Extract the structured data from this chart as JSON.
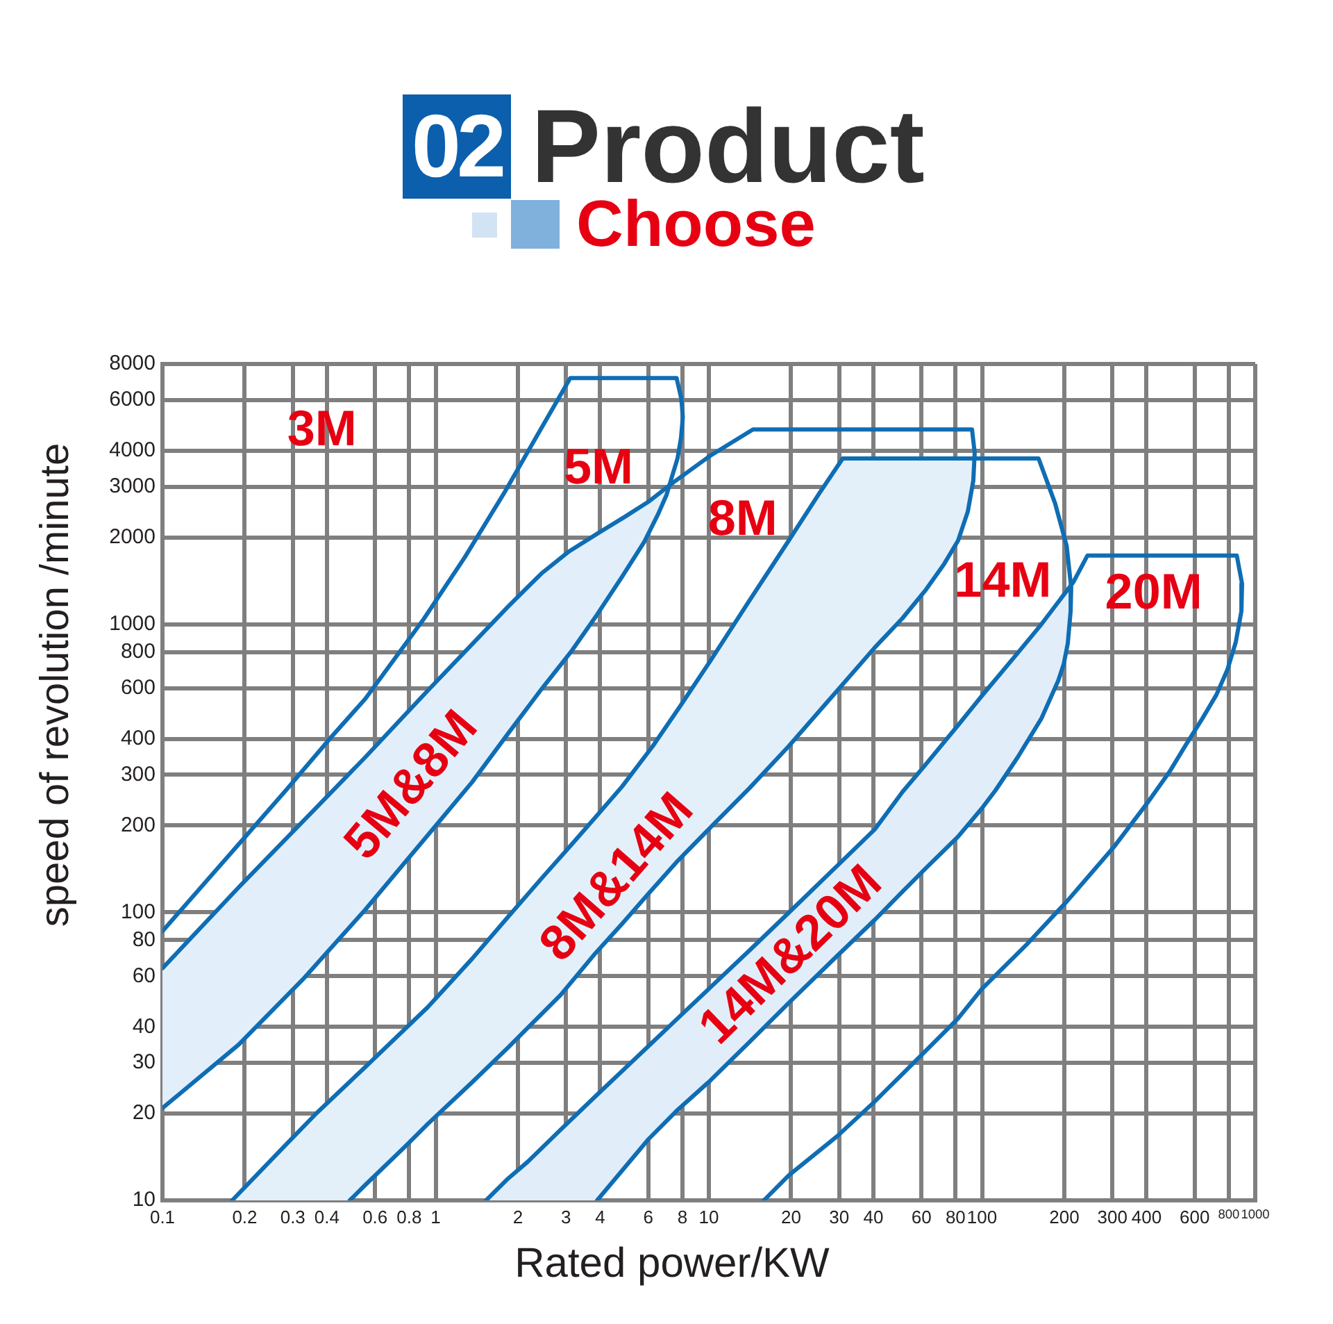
{
  "chart_data": {
    "type": "line",
    "title": "02 Product",
    "subtitle": "Choose",
    "xlabel": "Rated power/KW",
    "ylabel": "speed of revolution /minute",
    "log": "xy",
    "grid": true,
    "xlim": [
      0.1,
      1000
    ],
    "ylim": [
      10,
      8000
    ],
    "xticks": [
      0.1,
      0.2,
      0.3,
      0.4,
      0.6,
      0.8,
      1,
      2,
      3,
      4,
      6,
      8,
      10,
      20,
      30,
      40,
      60,
      80,
      100,
      200,
      300,
      400,
      600,
      800,
      1000
    ],
    "yticks": [
      10,
      20,
      30,
      40,
      60,
      80,
      100,
      200,
      300,
      400,
      600,
      800,
      1000,
      2000,
      3000,
      4000,
      6000,
      8000
    ],
    "annotations": [
      "3M",
      "5M",
      "8M",
      "14M",
      "20M",
      "5M&8M",
      "8M&14M",
      "14M&20M"
    ],
    "series": [
      {
        "type": "area",
        "color": "#e2effa",
        "x": [
          0.1,
          0.19,
          0.326,
          0.552,
          0.935,
          1.36,
          1.84,
          2.44,
          3.16,
          3.9,
          4.81,
          5.8,
          6.52,
          7.0,
          7.16,
          6.01,
          4.93,
          3.9,
          3.08,
          2.44,
          1.84,
          0.935,
          0.552,
          0.407,
          0.19,
          0.1
        ],
        "values": [
          20.9,
          34.7,
          58.4,
          102,
          185,
          283,
          417,
          595,
          812,
          1080,
          1460,
          1930,
          2410,
          2810,
          3030,
          2660,
          2360,
          2060,
          1790,
          1500,
          1150,
          588,
          345,
          256,
          122,
          63.9
        ]
      },
      {
        "type": "area",
        "color": "#e3f0fa",
        "x": [
          0.485,
          0.552,
          0.775,
          0.935,
          1.36,
          1.84,
          2.44,
          2.87,
          3.85,
          4.81,
          6.01,
          7.6,
          10.3,
          14.1,
          19.6,
          29.5,
          40.5,
          51.2,
          62.4,
          72.7,
          81.7,
          88.7,
          92.9,
          93.8,
          30.9,
          25.4,
          19.6,
          14.1,
          10.1,
          7.87,
          6.23,
          4.81,
          3.85,
          3.08,
          2.44,
          1.84,
          1.36,
          0.935,
          0.552,
          0.367,
          0.283,
          0.18
        ],
        "values": [
          10,
          11.3,
          15.4,
          18.4,
          25.7,
          33.9,
          44.3,
          51.7,
          72.2,
          91.1,
          116,
          149,
          200,
          270,
          377,
          588,
          830,
          1050,
          1320,
          1620,
          1950,
          2460,
          3150,
          3760,
          3760,
          2850,
          1950,
          1210,
          743,
          521,
          377,
          273,
          214,
          168,
          131,
          96.3,
          69,
          46.8,
          29,
          20.1,
          15.6,
          10
        ]
      },
      {
        "type": "area",
        "color": "#e1eef9",
        "x": [
          3.9,
          6.01,
          7.6,
          10.1,
          14.1,
          19.6,
          29.5,
          40.5,
          51.2,
          61.7,
          81.7,
          99.7,
          112,
          135,
          165,
          190,
          199,
          206,
          211,
          211,
          165,
          135,
          99.7,
          81.7,
          61.7,
          51.2,
          40.5,
          29.5,
          19.6,
          14.1,
          10.1,
          7.6,
          6.01,
          3.85,
          2.87,
          2.17,
          1.84,
          1.53
        ],
        "values": [
          10,
          16.3,
          20.4,
          26,
          35.5,
          48.4,
          70.6,
          94.2,
          118,
          141,
          183,
          229,
          265,
          345,
          471,
          636,
          726,
          858,
          1110,
          1370,
          1000,
          794,
          563,
          446,
          323,
          262,
          194,
          145,
          99.6,
          73.8,
          54.7,
          42.4,
          34.3,
          23,
          17.6,
          13.6,
          11.9,
          10
        ]
      },
      {
        "color": "#0f6db4",
        "x": [
          0.1,
          0.19,
          0.283,
          0.417,
          0.552,
          0.903,
          1.28,
          1.78,
          2.44,
          3.11,
          7.62,
          7.93,
          8.03,
          7.91,
          7.68,
          7.33,
          7.0,
          6.52,
          5.8,
          4.81,
          3.9,
          3.16,
          2.44,
          1.84,
          1.36,
          0.935,
          0.552,
          0.326,
          0.19,
          0.1
        ],
        "values": [
          86,
          172,
          265,
          408,
          550,
          1040,
          1710,
          2850,
          4800,
          7150,
          7150,
          6060,
          5240,
          4440,
          3760,
          3250,
          2810,
          2410,
          1930,
          1460,
          1080,
          812,
          595,
          417,
          283,
          185,
          102,
          58.4,
          34.7,
          20.9
        ]
      },
      {
        "color": "#0f6db4",
        "x": [
          0.1,
          0.19,
          0.407,
          0.552,
          0.935,
          1.84,
          2.44,
          3.08,
          3.9,
          4.93,
          6.01,
          7.33,
          10.1,
          14.5,
          91.9,
          94,
          92.9,
          88.7,
          81.7,
          72.7,
          62.4,
          51.2,
          40.5,
          29.5,
          19.6,
          14.1,
          10.3,
          7.6,
          6.01,
          4.81,
          3.85,
          2.87,
          2.44,
          1.84,
          1.36,
          0.935,
          0.775,
          0.552,
          0.485
        ],
        "values": [
          63.9,
          122,
          256,
          345,
          588,
          1150,
          1500,
          1790,
          2060,
          2360,
          2660,
          3080,
          3840,
          4740,
          4740,
          3930,
          3150,
          2460,
          1950,
          1620,
          1320,
          1050,
          830,
          588,
          377,
          270,
          200,
          149,
          116,
          91.1,
          72.2,
          51.7,
          44.3,
          33.9,
          25.7,
          18.4,
          15.4,
          11.3,
          10
        ]
      },
      {
        "color": "#0f6db4",
        "x": [
          0.18,
          0.283,
          0.367,
          0.552,
          0.935,
          1.36,
          1.84,
          2.44,
          3.08,
          3.85,
          4.81,
          6.23,
          7.87,
          10.1,
          14.1,
          19.6,
          25.4,
          30.9,
          161,
          185,
          204,
          212,
          211,
          206,
          199,
          190,
          165,
          135,
          112,
          99.7,
          81.7,
          61.7,
          51.2,
          40.5,
          29.5,
          19.6,
          14.1,
          10.1,
          7.6,
          6.01,
          3.9
        ],
        "values": [
          10,
          15.6,
          20.1,
          29,
          46.8,
          69,
          96.3,
          131,
          168,
          214,
          273,
          377,
          521,
          743,
          1210,
          1950,
          2850,
          3760,
          3760,
          2630,
          1870,
          1340,
          1110,
          858,
          726,
          636,
          471,
          345,
          265,
          229,
          183,
          141,
          118,
          94.2,
          70.6,
          48.4,
          35.5,
          26,
          20.4,
          16.3,
          10
        ]
      },
      {
        "color": "#0f6db4",
        "x": [
          1.53,
          1.84,
          2.17,
          2.87,
          3.85,
          6.01,
          7.6,
          10.1,
          14.1,
          19.6,
          29.5,
          40.5,
          51.2,
          61.7,
          81.7,
          99.7,
          135,
          165,
          216,
          243,
          856,
          895,
          890,
          849,
          791,
          721,
          641,
          557,
          484,
          406,
          303,
          206,
          147,
          99.7,
          81.7,
          61.7,
          51.2,
          40,
          29.5,
          19.6,
          15.9
        ],
        "values": [
          10,
          11.9,
          13.6,
          17.6,
          23,
          34.3,
          42.4,
          54.7,
          73.8,
          99.6,
          145,
          194,
          262,
          323,
          446,
          563,
          794,
          1000,
          1400,
          1730,
          1730,
          1380,
          1110,
          868,
          695,
          569,
          471,
          381,
          306,
          242,
          168,
          110,
          78,
          54.1,
          42.8,
          32.8,
          27.5,
          21.8,
          16.7,
          12.2,
          10
        ]
      }
    ]
  }
}
